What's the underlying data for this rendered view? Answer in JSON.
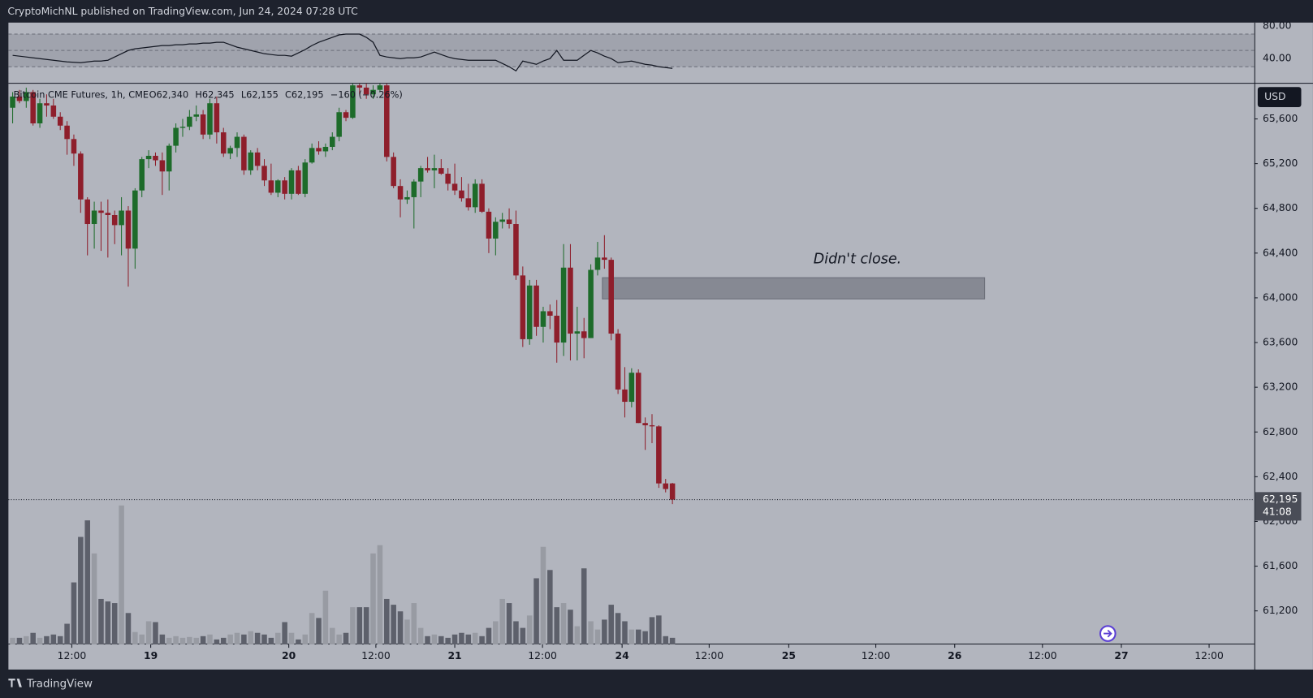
{
  "header": "CryptoMichNL published on TradingView.com, Jun 24, 2024 07:28 UTC",
  "footer": "TradingView",
  "chart_data": {
    "type": "candlestick",
    "legend": {
      "symbol": "Bitcoin CME Futures, 1h, CME",
      "open": "O62,340",
      "high": "H62,345",
      "low": "L62,155",
      "close": "C62,195",
      "change": "−160 (−0.26%)"
    },
    "currency": "USD",
    "last_price_label": "62,195",
    "countdown": "41:08",
    "annotation": {
      "text": "Didn't close.",
      "zone_x": [
        86.7,
        142.9
      ],
      "zone_y": [
        64180,
        63990
      ]
    },
    "colors": {
      "up": "#1d6b2a",
      "down": "#8e1e2b",
      "volume_up": "#989ba3",
      "volume_down": "#5d606b",
      "rsi": "#131722"
    },
    "open": [
      65700,
      65800,
      65760,
      65840,
      65560,
      65740,
      65720,
      65620,
      65540,
      65420,
      65290,
      64880,
      64660,
      64780,
      64760,
      64740,
      64650,
      64780,
      64440,
      64960,
      65240,
      65270,
      65230,
      65130,
      65360,
      65520,
      65530,
      65620,
      65640,
      65460,
      65740,
      65480,
      65290,
      65340,
      65440,
      65140,
      65300,
      65180,
      65050,
      64940,
      65050,
      64930,
      65140,
      64930,
      65210,
      65340,
      65310,
      65350,
      65440,
      65660,
      65610,
      65900,
      65880,
      65820,
      65860,
      65900,
      65260,
      65000,
      64880,
      64900,
      65040,
      65160,
      65140,
      65160,
      65110,
      65020,
      64960,
      64890,
      64810,
      65020,
      64770,
      64530,
      64680,
      64700,
      64660,
      64200,
      63630,
      64110,
      63740,
      63880,
      63840,
      63600,
      64270,
      63680,
      63700,
      63640,
      64250,
      64360,
      64340,
      63680,
      63180,
      63070,
      63330,
      62880,
      62860,
      62850,
      62340,
      62340
    ],
    "high": [
      65840,
      65860,
      65880,
      65860,
      65780,
      65820,
      65780,
      65660,
      65580,
      65460,
      65310,
      64900,
      64860,
      64860,
      64880,
      64780,
      64900,
      64820,
      64980,
      65260,
      65320,
      65300,
      65300,
      65380,
      65560,
      65600,
      65680,
      65720,
      65680,
      65780,
      65800,
      65520,
      65360,
      65480,
      65460,
      65320,
      65340,
      65240,
      65200,
      65060,
      65080,
      65160,
      65180,
      65240,
      65380,
      65400,
      65380,
      65480,
      65700,
      65680,
      65920,
      65960,
      65920,
      65900,
      65920,
      65920,
      65300,
      65060,
      64960,
      65060,
      65180,
      65260,
      65280,
      65240,
      65160,
      65200,
      65080,
      65020,
      65060,
      65060,
      64800,
      64720,
      64760,
      64800,
      64780,
      64280,
      64160,
      64160,
      63920,
      63940,
      63980,
      64480,
      64480,
      63920,
      63820,
      64300,
      64500,
      64560,
      64360,
      63720,
      63380,
      63370,
      63360,
      62930,
      62960,
      62860,
      62380,
      62345
    ],
    "low": [
      65560,
      65740,
      65700,
      65540,
      65520,
      65620,
      65600,
      65500,
      65280,
      65180,
      64760,
      64380,
      64440,
      64420,
      64360,
      64480,
      64380,
      64100,
      64260,
      64900,
      65160,
      65180,
      64920,
      64960,
      65300,
      65440,
      65500,
      65580,
      65420,
      65420,
      65380,
      65260,
      65240,
      65260,
      65100,
      65100,
      65140,
      65000,
      64920,
      64900,
      64880,
      64880,
      64920,
      64900,
      65200,
      65280,
      65260,
      65320,
      65400,
      65580,
      65600,
      65820,
      65780,
      65780,
      65840,
      65220,
      64980,
      64720,
      64840,
      64620,
      64900,
      65120,
      64980,
      65100,
      64960,
      64920,
      64860,
      64780,
      64760,
      64760,
      64400,
      64380,
      64620,
      64620,
      64160,
      63560,
      63580,
      63660,
      63600,
      63720,
      63420,
      63480,
      63440,
      63440,
      63460,
      63640,
      64200,
      64260,
      63620,
      63140,
      62930,
      63020,
      62880,
      62640,
      62700,
      62300,
      62260,
      62155
    ],
    "close": [
      65800,
      65760,
      65840,
      65560,
      65740,
      65720,
      65620,
      65540,
      65420,
      65290,
      64880,
      64660,
      64780,
      64760,
      64740,
      64650,
      64780,
      64440,
      64960,
      65240,
      65270,
      65230,
      65130,
      65360,
      65520,
      65530,
      65620,
      65640,
      65460,
      65740,
      65480,
      65290,
      65340,
      65440,
      65140,
      65300,
      65180,
      65050,
      64940,
      65050,
      64930,
      65140,
      64930,
      65210,
      65340,
      65310,
      65350,
      65440,
      65660,
      65610,
      65900,
      65880,
      65820,
      65860,
      65900,
      65260,
      65000,
      64880,
      64900,
      65040,
      65160,
      65140,
      65160,
      65110,
      65020,
      64960,
      64890,
      64810,
      65020,
      64770,
      64530,
      64680,
      64700,
      64660,
      64200,
      63630,
      64110,
      63740,
      63880,
      63840,
      63600,
      64270,
      63680,
      63700,
      63640,
      64250,
      64360,
      64340,
      63680,
      63180,
      63070,
      63330,
      62880,
      62860,
      62850,
      62340,
      62290,
      62195
    ],
    "volume": [
      8,
      8,
      10,
      14,
      8,
      10,
      12,
      10,
      25,
      75,
      130,
      150,
      110,
      55,
      52,
      50,
      168,
      38,
      15,
      12,
      28,
      27,
      12,
      8,
      10,
      8,
      9,
      8,
      10,
      12,
      6,
      8,
      12,
      14,
      12,
      16,
      14,
      12,
      8,
      14,
      27,
      14,
      6,
      12,
      38,
      32,
      65,
      20,
      12,
      14,
      45,
      45,
      45,
      110,
      120,
      55,
      48,
      40,
      30,
      50,
      20,
      10,
      12,
      10,
      8,
      12,
      14,
      12,
      14,
      10,
      20,
      28,
      55,
      50,
      28,
      20,
      35,
      80,
      118,
      90,
      45,
      50,
      42,
      22,
      92,
      28,
      18,
      30,
      48,
      38,
      28,
      18,
      18,
      16,
      33,
      35,
      10,
      8
    ],
    "volume_lim": [
      0,
      170
    ],
    "rsi": [
      44,
      43,
      42,
      41,
      40,
      39,
      38,
      37,
      36,
      35.5,
      35,
      36,
      37,
      37,
      38,
      42,
      46,
      50,
      52,
      53,
      54,
      55,
      56,
      56,
      57,
      57,
      58,
      58,
      59,
      59,
      60,
      60,
      57,
      54,
      52,
      50,
      48,
      46,
      45,
      44,
      44,
      43,
      47,
      51,
      56,
      60,
      63,
      66,
      69,
      70,
      70,
      70,
      66,
      60,
      44,
      42,
      41,
      40,
      41,
      41,
      42,
      45,
      48,
      45,
      42,
      40,
      39,
      38,
      38,
      38,
      38,
      38,
      34,
      30,
      25,
      37,
      35,
      33,
      37,
      40,
      50,
      38,
      38,
      38,
      44,
      50,
      47,
      43,
      40,
      35,
      36,
      37,
      35,
      33,
      32,
      30,
      29,
      28
    ],
    "rsi_lim": [
      10.3,
      84.1
    ],
    "rsi_levels": [
      70,
      50,
      30
    ],
    "rsi_ticks": [
      {
        "value": 80,
        "label": "80.00"
      },
      {
        "value": 40,
        "label": "40.00"
      }
    ],
    "xlim": [
      -0.62,
      182.55
    ],
    "xticks": [
      {
        "value": 8.7,
        "label": "12:00"
      },
      {
        "value": 20.3,
        "label": "19"
      },
      {
        "value": 40.6,
        "label": "20"
      },
      {
        "value": 53.4,
        "label": "12:00"
      },
      {
        "value": 65.0,
        "label": "21"
      },
      {
        "value": 77.9,
        "label": "12:00"
      },
      {
        "value": 89.6,
        "label": "24"
      },
      {
        "value": 102.4,
        "label": "12:00"
      },
      {
        "value": 114.1,
        "label": "25"
      },
      {
        "value": 126.9,
        "label": "12:00"
      },
      {
        "value": 138.5,
        "label": "26"
      },
      {
        "value": 151.4,
        "label": "12:00"
      },
      {
        "value": 163.0,
        "label": "27"
      },
      {
        "value": 175.9,
        "label": "12:00"
      }
    ],
    "ylim": [
      60900,
      65915
    ],
    "yticks": [
      {
        "value": 61200,
        "label": "61,200"
      },
      {
        "value": 61600,
        "label": "61,600"
      },
      {
        "value": 62000,
        "label": "62,000"
      },
      {
        "value": 62400,
        "label": "62,400"
      },
      {
        "value": 62800,
        "label": "62,800"
      },
      {
        "value": 63200,
        "label": "63,200"
      },
      {
        "value": 63600,
        "label": "63,600"
      },
      {
        "value": 64000,
        "label": "64,000"
      },
      {
        "value": 64400,
        "label": "64,400"
      },
      {
        "value": 64800,
        "label": "64,800"
      },
      {
        "value": 65200,
        "label": "65,200"
      },
      {
        "value": 65600,
        "label": "65,600"
      }
    ]
  }
}
